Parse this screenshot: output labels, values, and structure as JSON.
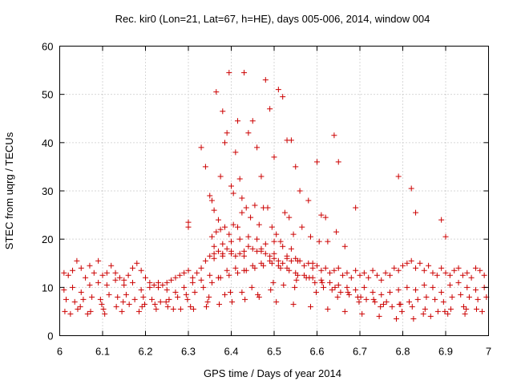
{
  "chart_data": {
    "type": "scatter",
    "title": "Rec. kir0 (Lon=21, Lat=67, h=HE), days 005-006, 2014, window 004",
    "xlabel": "GPS time / Days of year 2014",
    "ylabel": "STEC from uqrg / TECUs",
    "xlim": [
      6,
      7
    ],
    "ylim": [
      0,
      60
    ],
    "xticks": [
      6,
      6.1,
      6.2,
      6.3,
      6.4,
      6.5,
      6.6,
      6.7,
      6.8,
      6.9,
      7
    ],
    "xtick_labels": [
      "6",
      "6.1",
      "6.2",
      "6.3",
      "6.4",
      "6.5",
      "6.6",
      "6.7",
      "6.8",
      "6.9",
      "7"
    ],
    "yticks": [
      0,
      10,
      20,
      30,
      40,
      50,
      60
    ],
    "ytick_labels": [
      "0",
      "10",
      "20",
      "30",
      "40",
      "50",
      "60"
    ],
    "grid": true,
    "marker": "plus",
    "marker_color": "#cc0000",
    "series": [
      {
        "name": "STEC",
        "x": [
          6.01,
          6.02,
          6.03,
          6.04,
          6.05,
          6.06,
          6.07,
          6.08,
          6.09,
          6.1,
          6.11,
          6.12,
          6.13,
          6.14,
          6.15,
          6.16,
          6.17,
          6.18,
          6.19,
          6.2,
          6.21,
          6.22,
          6.23,
          6.24,
          6.25,
          6.26,
          6.27,
          6.28,
          6.29,
          6.3,
          6.31,
          6.32,
          6.33,
          6.34,
          6.35,
          6.36,
          6.37,
          6.38,
          6.39,
          6.4,
          6.41,
          6.42,
          6.43,
          6.44,
          6.45,
          6.46,
          6.47,
          6.48,
          6.49,
          6.5,
          6.51,
          6.52,
          6.53,
          6.54,
          6.55,
          6.56,
          6.57,
          6.58,
          6.59,
          6.6,
          6.61,
          6.62,
          6.63,
          6.64,
          6.65,
          6.66,
          6.67,
          6.68,
          6.69,
          6.7,
          6.71,
          6.72,
          6.73,
          6.74,
          6.75,
          6.76,
          6.77,
          6.78,
          6.79,
          6.8,
          6.81,
          6.82,
          6.83,
          6.84,
          6.85,
          6.86,
          6.87,
          6.88,
          6.89,
          6.9,
          6.91,
          6.92,
          6.93,
          6.94,
          6.95,
          6.96,
          6.97,
          6.98,
          6.99,
          6.01,
          6.03,
          6.05,
          6.07,
          6.09,
          6.11,
          6.13,
          6.15,
          6.17,
          6.19,
          6.21,
          6.23,
          6.25,
          6.27,
          6.29,
          6.31,
          6.33,
          6.35,
          6.37,
          6.39,
          6.41,
          6.43,
          6.45,
          6.47,
          6.49,
          6.51,
          6.53,
          6.55,
          6.57,
          6.59,
          6.61,
          6.63,
          6.65,
          6.67,
          6.69,
          6.71,
          6.73,
          6.75,
          6.77,
          6.79,
          6.81,
          6.83,
          6.85,
          6.87,
          6.89,
          6.91,
          6.93,
          6.95,
          6.97,
          6.99,
          6.015,
          6.035,
          6.055,
          6.075,
          6.095,
          6.115,
          6.135,
          6.155,
          6.175,
          6.195,
          6.215,
          6.235,
          6.255,
          6.275,
          6.295,
          6.315,
          6.335,
          6.355,
          6.375,
          6.395,
          6.415,
          6.435,
          6.455,
          6.475,
          6.495,
          6.515,
          6.535,
          6.555,
          6.575,
          6.595,
          6.615,
          6.635,
          6.655,
          6.675,
          6.695,
          6.715,
          6.735,
          6.755,
          6.775,
          6.795,
          6.815,
          6.835,
          6.855,
          6.875,
          6.895,
          6.915,
          6.935,
          6.955,
          6.975,
          6.995,
          6.012,
          6.042,
          6.072,
          6.102,
          6.132,
          6.162,
          6.192,
          6.222,
          6.252,
          6.282,
          6.312,
          6.342,
          6.372,
          6.402,
          6.432,
          6.462,
          6.492,
          6.522,
          6.552,
          6.582,
          6.612,
          6.642,
          6.672,
          6.702,
          6.732,
          6.762,
          6.792,
          6.822,
          6.852,
          6.882,
          6.912,
          6.942,
          6.972,
          6.025,
          6.065,
          6.105,
          6.145,
          6.185,
          6.225,
          6.265,
          6.305,
          6.345,
          6.385,
          6.425,
          6.465,
          6.505,
          6.545,
          6.585,
          6.625,
          6.665,
          6.705,
          6.745,
          6.785,
          6.825,
          6.865,
          6.905,
          6.945,
          6.985,
          6.048,
          6.098,
          6.148,
          6.198,
          6.248,
          6.298,
          6.348,
          6.398,
          6.448,
          6.498,
          6.548,
          6.598,
          6.648,
          6.698,
          6.748,
          6.798,
          6.848,
          6.898,
          6.948,
          6.3,
          6.3,
          6.33,
          6.34,
          6.35,
          6.355,
          6.36,
          6.365,
          6.37,
          6.375,
          6.38,
          6.385,
          6.39,
          6.395,
          6.4,
          6.405,
          6.41,
          6.415,
          6.42,
          6.425,
          6.43,
          6.44,
          6.45,
          6.46,
          6.47,
          6.48,
          6.49,
          6.5,
          6.51,
          6.52,
          6.53,
          6.54,
          6.55,
          6.56,
          6.58,
          6.6,
          6.61,
          6.62,
          6.64,
          6.65,
          6.69,
          6.79,
          6.82,
          6.83,
          6.89,
          6.9,
          6.355,
          6.365,
          6.375,
          6.385,
          6.395,
          6.405,
          6.415,
          6.425,
          6.435,
          6.445,
          6.455,
          6.465,
          6.475,
          6.485,
          6.495,
          6.505,
          6.515,
          6.525,
          6.535,
          6.545,
          6.565,
          6.585,
          6.605,
          6.625,
          6.645,
          6.665,
          6.36,
          6.38,
          6.4,
          6.42,
          6.44,
          6.46,
          6.48,
          6.5,
          6.52,
          6.54,
          6.36,
          6.38,
          6.4,
          6.43,
          6.47,
          6.5,
          6.53,
          6.555,
          6.59
        ],
        "y": [
          13.0,
          12.5,
          13.5,
          15.5,
          14.0,
          12.0,
          14.5,
          13.0,
          15.5,
          12.5,
          13.0,
          14.5,
          13.0,
          12.0,
          11.5,
          12.5,
          14.0,
          15.0,
          13.5,
          12.0,
          11.0,
          10.5,
          11.0,
          10.5,
          11.0,
          11.5,
          12.0,
          12.5,
          13.0,
          13.5,
          12.0,
          13.0,
          14.0,
          15.5,
          16.5,
          17.0,
          17.5,
          17.0,
          18.0,
          17.5,
          16.5,
          17.0,
          17.5,
          18.5,
          18.0,
          17.5,
          18.0,
          17.0,
          16.5,
          16.0,
          15.5,
          15.0,
          16.0,
          15.5,
          16.0,
          15.5,
          14.5,
          15.0,
          14.0,
          14.5,
          13.5,
          14.0,
          13.0,
          13.5,
          14.0,
          12.5,
          13.0,
          12.0,
          13.5,
          12.5,
          13.0,
          12.0,
          13.5,
          12.5,
          11.5,
          13.0,
          12.5,
          14.0,
          13.5,
          14.5,
          15.0,
          15.5,
          14.0,
          15.0,
          13.5,
          14.5,
          13.0,
          12.5,
          14.0,
          13.0,
          12.5,
          13.5,
          14.0,
          12.5,
          13.0,
          12.0,
          14.0,
          13.5,
          12.5,
          9.5,
          10.0,
          9.0,
          10.5,
          11.0,
          10.5,
          11.5,
          10.5,
          11.0,
          9.5,
          10.0,
          10.0,
          9.5,
          9.0,
          10.0,
          11.0,
          11.5,
          12.5,
          12.0,
          13.5,
          14.0,
          13.5,
          14.5,
          15.0,
          15.5,
          14.5,
          14.0,
          13.0,
          12.5,
          12.0,
          11.5,
          11.0,
          10.5,
          10.0,
          9.5,
          10.0,
          9.0,
          8.5,
          9.0,
          9.5,
          10.0,
          9.5,
          10.5,
          10.0,
          9.0,
          10.5,
          11.0,
          10.0,
          9.5,
          10.0,
          7.5,
          7.0,
          7.5,
          8.0,
          7.5,
          8.5,
          8.0,
          8.5,
          7.5,
          8.0,
          7.5,
          7.0,
          7.5,
          8.0,
          8.5,
          9.0,
          10.0,
          11.0,
          12.0,
          12.5,
          13.0,
          13.5,
          14.0,
          14.5,
          15.0,
          14.0,
          13.5,
          12.5,
          12.0,
          11.0,
          10.0,
          9.5,
          9.0,
          8.5,
          8.0,
          7.5,
          7.0,
          6.5,
          6.0,
          6.5,
          7.0,
          7.5,
          8.0,
          7.5,
          7.0,
          8.0,
          8.5,
          8.0,
          7.5,
          8.0,
          5.0,
          5.5,
          5.0,
          5.5,
          6.0,
          6.5,
          6.0,
          6.5,
          6.0,
          5.5,
          5.5,
          6.0,
          6.5,
          7.0,
          7.5,
          8.5,
          9.5,
          10.5,
          11.5,
          12.0,
          11.0,
          10.0,
          9.0,
          8.0,
          7.5,
          7.0,
          6.5,
          6.0,
          5.5,
          5.0,
          5.5,
          6.0,
          5.5,
          4.5,
          4.5,
          4.5,
          5.0,
          5.0,
          5.5,
          5.5,
          6.0,
          7.0,
          8.5,
          9.0,
          8.0,
          7.0,
          6.5,
          6.0,
          5.5,
          5.0,
          4.5,
          4.0,
          3.5,
          3.5,
          4.0,
          4.5,
          4.5,
          5.0,
          6.0,
          6.5,
          7.0,
          6.5,
          7.0,
          7.5,
          8.0,
          9.0,
          10.0,
          11.0,
          10.0,
          9.0,
          8.0,
          7.0,
          6.0,
          5.0,
          4.5,
          5.0,
          5.5,
          23.5,
          22.5,
          39.0,
          35.0,
          29.0,
          28.0,
          26.0,
          50.5,
          24.0,
          33.0,
          46.5,
          40.0,
          42.0,
          54.5,
          31.0,
          29.5,
          38.0,
          44.5,
          32.5,
          28.5,
          54.5,
          42.0,
          44.5,
          39.0,
          33.0,
          53.0,
          47.0,
          37.0,
          51.0,
          49.5,
          40.5,
          40.5,
          35.0,
          30.0,
          28.0,
          36.0,
          25.0,
          24.5,
          41.5,
          36.0,
          26.5,
          33.0,
          30.5,
          25.5,
          24.0,
          20.5,
          20.5,
          21.5,
          22.0,
          22.5,
          21.0,
          23.0,
          22.5,
          25.5,
          26.5,
          24.5,
          27.0,
          23.0,
          26.5,
          26.5,
          22.5,
          21.0,
          19.5,
          25.5,
          24.5,
          21.0,
          22.5,
          20.5,
          19.5,
          19.5,
          21.5,
          18.5,
          18.5,
          19.0,
          19.5,
          20.0,
          20.5,
          20.0,
          19.0,
          19.5,
          18.5,
          18.0,
          16.0,
          16.5,
          17.0,
          16.5,
          17.5,
          17.0,
          16.5,
          15.5,
          15.0
        ]
      }
    ]
  }
}
